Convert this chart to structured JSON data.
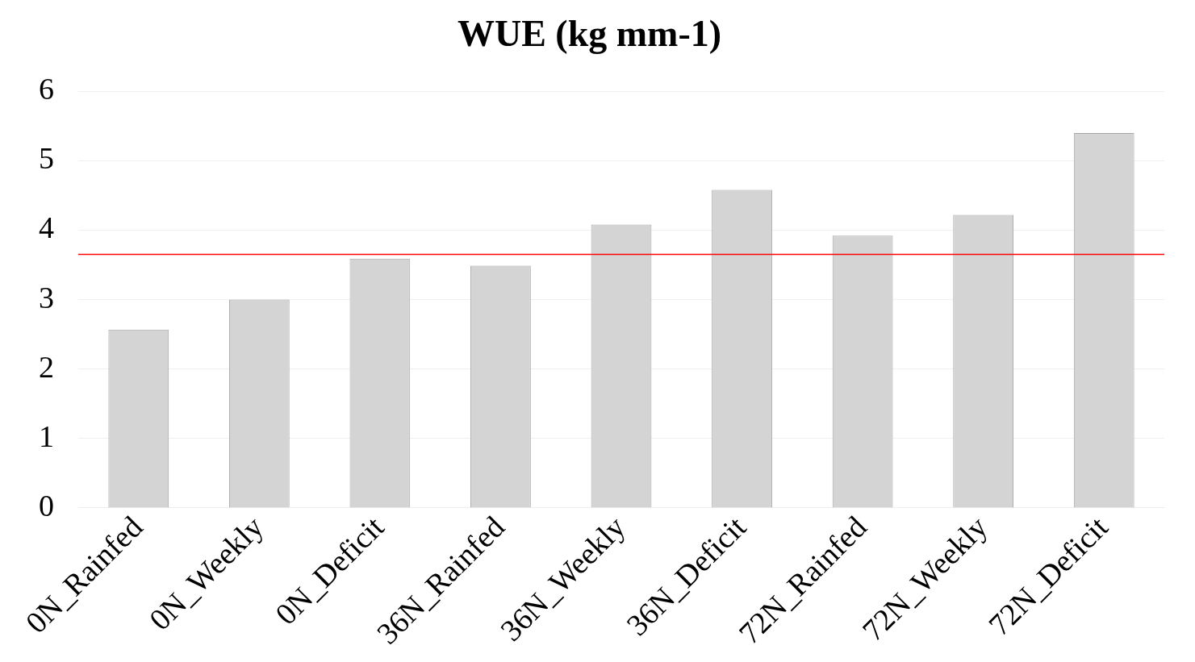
{
  "chart_data": {
    "type": "bar",
    "title": "WUE (kg mm-1)",
    "categories": [
      "0N_Rainfed",
      "0N_Weekly",
      "0N_Deficit",
      "36N_Rainfed",
      "36N_Weekly",
      "36N_Deficit",
      "72N_Rainfed",
      "72N_Weekly",
      "72N_Deficit"
    ],
    "values": [
      2.57,
      3.0,
      3.59,
      3.49,
      4.08,
      4.58,
      3.92,
      4.22,
      5.4
    ],
    "color": "#d4d4d4",
    "ylim": [
      0,
      6
    ],
    "yticks": [
      0,
      1,
      2,
      3,
      4,
      5,
      6
    ],
    "grid": "y",
    "ref_lines": [
      {
        "axis": "y",
        "value": 3.65,
        "color": "#ff0000"
      }
    ]
  }
}
